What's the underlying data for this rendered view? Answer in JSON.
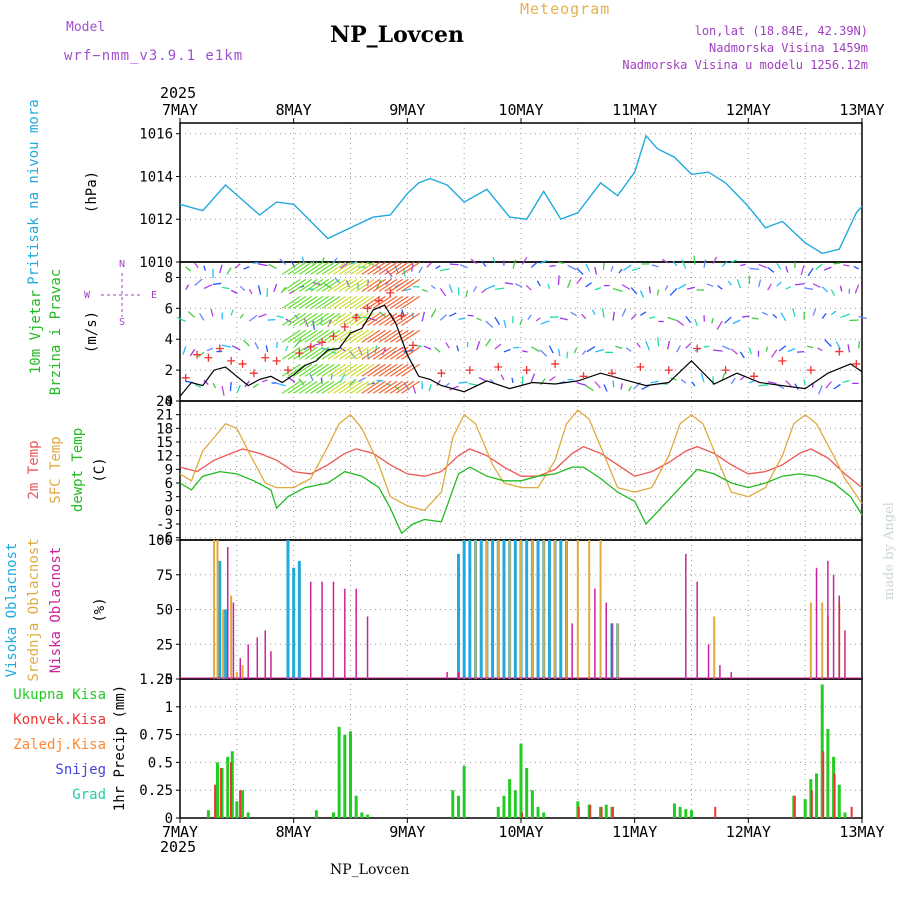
{
  "header": {
    "model_label": "Model",
    "model_value": "wrf−nmm_v3.9.1 e1km",
    "station": "NP_Lovcen",
    "meteogram_label": "Meteogram",
    "lonlat": "lon,lat (18.84E, 42.39N)",
    "elevation": "Nadmorska Visina 1459m",
    "elevation_model": "Nadmorska Visina u modelu 1256.12m",
    "year": "2025",
    "credit": "made by Angel",
    "footer_station": "NP_Lovcen"
  },
  "colors": {
    "pressure": "#22aadd",
    "wind_label": "#22bb22",
    "wind_speed_line": "#000000",
    "wind_gust_marker": "#ee3333",
    "temp_2m": "#ee5555",
    "temp_sfc": "#e0aa40",
    "dewpoint": "#22bb22",
    "cloud_high": "#22aadd",
    "cloud_mid": "#e0aa40",
    "cloud_low": "#cc2299",
    "precip_total": "#22cc22",
    "precip_conv": "#ee3333",
    "precip_frz": "#ff8833",
    "precip_snow": "#4444dd",
    "precip_grad": "#22ccaa",
    "grid": "#999999"
  },
  "chart_data": [
    {
      "type": "line",
      "id": "pressure",
      "ylabel": "Pritisak na nivou mora",
      "unit": "(hPa)",
      "x_dates": [
        "7MAY",
        "8MAY",
        "9MAY",
        "10MAY",
        "11MAY",
        "12MAY",
        "13MAY"
      ],
      "ylim": [
        1010,
        1016.5
      ],
      "yticks": [
        1010,
        1012,
        1014,
        1016
      ],
      "grid": true,
      "series": [
        {
          "x_days": [
            0,
            0.2,
            0.4,
            0.55,
            0.7,
            0.85,
            1.0,
            1.15,
            1.3,
            1.5,
            1.7,
            1.85,
            2.0,
            2.1,
            2.2,
            2.35,
            2.5,
            2.7,
            2.9,
            3.05,
            3.2,
            3.35,
            3.5,
            3.7,
            3.85,
            4.0,
            4.1,
            4.2,
            4.35,
            4.5,
            4.65,
            4.8,
            5.0,
            5.15,
            5.3,
            5.5,
            5.65,
            5.8,
            5.95,
            6.0
          ],
          "values": [
            1012.7,
            1012.4,
            1013.6,
            1012.9,
            1012.2,
            1012.8,
            1012.7,
            1011.9,
            1011.1,
            1011.6,
            1012.1,
            1012.2,
            1013.2,
            1013.7,
            1013.9,
            1013.6,
            1012.8,
            1013.4,
            1012.1,
            1012.0,
            1013.3,
            1012.0,
            1012.3,
            1013.7,
            1013.1,
            1014.2,
            1015.9,
            1015.3,
            1014.9,
            1014.1,
            1014.2,
            1013.7,
            1012.6,
            1011.6,
            1011.9,
            1010.9,
            1010.4,
            1010.6,
            1012.3,
            1012.6
          ]
        }
      ]
    },
    {
      "type": "line",
      "id": "wind",
      "ylabel_lines": [
        "10m Vjetar",
        "Brzina i Pravac"
      ],
      "unit": "(m/s)",
      "compass": {
        "n": "N",
        "s": "S",
        "w": "W",
        "e": "E"
      },
      "ylim": [
        0,
        9
      ],
      "yticks": [
        0,
        2,
        4,
        6,
        8
      ],
      "grid": true,
      "series": [
        {
          "name": "speed",
          "x_days": [
            0,
            0.1,
            0.2,
            0.3,
            0.4,
            0.5,
            0.6,
            0.7,
            0.8,
            0.9,
            1.0,
            1.1,
            1.2,
            1.3,
            1.4,
            1.5,
            1.6,
            1.7,
            1.8,
            1.9,
            2.0,
            2.1,
            2.2,
            2.3,
            2.5,
            2.7,
            2.9,
            3.1,
            3.3,
            3.5,
            3.7,
            3.9,
            4.1,
            4.3,
            4.5,
            4.7,
            4.9,
            5.1,
            5.3,
            5.5,
            5.7,
            5.9,
            6.0
          ],
          "values": [
            0.3,
            1.2,
            1.0,
            2.0,
            2.2,
            1.6,
            1.0,
            1.4,
            1.6,
            1.2,
            1.7,
            2.3,
            2.6,
            3.3,
            3.4,
            4.4,
            4.7,
            5.9,
            6.2,
            5.0,
            3.0,
            1.6,
            1.4,
            1.0,
            0.6,
            1.3,
            0.8,
            1.2,
            1.1,
            1.3,
            1.8,
            1.4,
            1.0,
            1.2,
            2.6,
            1.1,
            1.8,
            1.2,
            1.0,
            0.8,
            1.8,
            2.4,
            1.9
          ]
        },
        {
          "name": "gust",
          "x_days": [
            0.05,
            0.15,
            0.25,
            0.35,
            0.45,
            0.55,
            0.65,
            0.75,
            0.85,
            0.95,
            1.05,
            1.15,
            1.25,
            1.35,
            1.45,
            1.55,
            1.65,
            1.75,
            1.85,
            1.95,
            2.05,
            2.3,
            2.55,
            2.8,
            3.05,
            3.3,
            3.55,
            3.8,
            4.05,
            4.3,
            4.55,
            4.8,
            5.05,
            5.3,
            5.55,
            5.8,
            5.95
          ],
          "values": [
            1.5,
            3.0,
            2.8,
            3.4,
            2.6,
            2.4,
            1.8,
            2.8,
            2.6,
            2.0,
            3.1,
            3.5,
            3.8,
            4.2,
            4.8,
            5.4,
            6.0,
            6.5,
            7.0,
            5.5,
            3.6,
            1.8,
            2.0,
            2.2,
            2.0,
            2.4,
            1.6,
            1.8,
            2.2,
            2.0,
            3.4,
            2.0,
            1.6,
            2.6,
            2.0,
            3.2,
            2.4
          ]
        }
      ]
    },
    {
      "type": "line",
      "id": "temperature",
      "ylabel_lines": [
        "2m Temp",
        "SFC Temp",
        "dewpt Temp"
      ],
      "unit": "(C)",
      "ylim": [
        -6.5,
        24
      ],
      "yticks": [
        -6,
        -3,
        0,
        3,
        6,
        9,
        12,
        15,
        18,
        21,
        24
      ],
      "grid": true,
      "series": [
        {
          "name": "2m Temp",
          "x_days": [
            0,
            0.15,
            0.3,
            0.45,
            0.55,
            0.7,
            0.85,
            1.0,
            1.15,
            1.3,
            1.45,
            1.55,
            1.7,
            1.85,
            2.0,
            2.15,
            2.3,
            2.45,
            2.55,
            2.7,
            2.85,
            3.0,
            3.15,
            3.3,
            3.45,
            3.55,
            3.7,
            3.85,
            4.0,
            4.15,
            4.3,
            4.45,
            4.55,
            4.7,
            4.85,
            5.0,
            5.15,
            5.3,
            5.45,
            5.55,
            5.7,
            5.85,
            6.0
          ],
          "values": [
            9.5,
            8.5,
            11,
            12.5,
            13.5,
            12.5,
            11,
            8.5,
            8,
            10,
            12.5,
            13.5,
            12.5,
            10,
            8,
            7.5,
            8.5,
            12,
            13.5,
            12,
            9.5,
            7.5,
            7.5,
            9,
            12.5,
            14,
            12.5,
            10,
            7.5,
            8.5,
            10.5,
            13,
            14,
            12.5,
            10,
            8,
            8.5,
            10,
            12.5,
            13.5,
            11.5,
            8,
            5
          ]
        },
        {
          "name": "SFC Temp",
          "x_days": [
            0,
            0.1,
            0.2,
            0.3,
            0.4,
            0.5,
            0.6,
            0.75,
            0.85,
            1.0,
            1.15,
            1.3,
            1.4,
            1.5,
            1.6,
            1.75,
            1.85,
            2.0,
            2.15,
            2.3,
            2.4,
            2.5,
            2.6,
            2.75,
            2.85,
            3.0,
            3.15,
            3.3,
            3.4,
            3.5,
            3.6,
            3.75,
            3.85,
            4.0,
            4.15,
            4.3,
            4.4,
            4.5,
            4.6,
            4.75,
            4.85,
            5.0,
            5.15,
            5.3,
            5.4,
            5.5,
            5.6,
            5.75,
            5.85,
            6.0
          ],
          "values": [
            8,
            6.5,
            13,
            16,
            19,
            18,
            13,
            6,
            5,
            5,
            7,
            14,
            19,
            21,
            18,
            10,
            3,
            1,
            0,
            4,
            16,
            21,
            19,
            10,
            6,
            5,
            5,
            11,
            19,
            22,
            20,
            11,
            5,
            4,
            5,
            12,
            19,
            21,
            19,
            10,
            4,
            3,
            5,
            12,
            19,
            21,
            19,
            12,
            7,
            1.5
          ]
        },
        {
          "name": "dewpt Temp",
          "x_days": [
            0,
            0.1,
            0.2,
            0.35,
            0.5,
            0.65,
            0.8,
            0.85,
            0.95,
            1.1,
            1.3,
            1.45,
            1.6,
            1.75,
            1.85,
            1.95,
            2.05,
            2.15,
            2.3,
            2.45,
            2.55,
            2.7,
            2.85,
            3.0,
            3.15,
            3.3,
            3.45,
            3.55,
            3.7,
            3.85,
            4.0,
            4.1,
            4.25,
            4.4,
            4.55,
            4.7,
            4.85,
            5.0,
            5.15,
            5.3,
            5.45,
            5.6,
            5.75,
            5.9,
            6.0
          ],
          "values": [
            6,
            4.5,
            7.5,
            8.5,
            8,
            6.5,
            4.5,
            0.5,
            3,
            5,
            6,
            8.5,
            7.5,
            5,
            0.5,
            -5,
            -3,
            -2,
            -2.5,
            8,
            9.5,
            7.5,
            6.5,
            6.5,
            7.5,
            8,
            9.5,
            9.5,
            7,
            4,
            2,
            -3,
            1,
            5,
            9,
            8,
            6,
            5,
            6,
            7.5,
            8,
            7.5,
            6,
            3,
            -1
          ]
        }
      ]
    },
    {
      "type": "bar",
      "id": "clouds",
      "ylabel_lines": [
        "Visoka Oblacnost",
        "Srednja Oblacnost",
        "Niska Oblacnost"
      ],
      "unit": "(%)",
      "ylim": [
        0,
        100
      ],
      "yticks": [
        0,
        25,
        50,
        75,
        100
      ],
      "grid": true,
      "series": [
        {
          "name": "Visoka Oblacnost",
          "x_days": [
            0.35,
            0.4,
            0.95,
            1.0,
            1.05,
            2.45,
            2.5,
            2.55,
            2.6,
            2.65,
            2.7,
            2.75,
            2.8,
            2.85,
            2.9,
            2.95,
            3.0,
            3.05,
            3.1,
            3.15,
            3.2,
            3.25,
            3.3,
            3.35,
            3.4,
            3.8,
            3.85
          ],
          "values": [
            85,
            50,
            100,
            80,
            85,
            90,
            100,
            100,
            100,
            100,
            100,
            100,
            100,
            100,
            100,
            100,
            100,
            100,
            100,
            100,
            100,
            100,
            100,
            100,
            100,
            40,
            40
          ]
        },
        {
          "name": "Srednja Oblacnost",
          "x_days": [
            0.3,
            0.33,
            0.38,
            0.45,
            0.5,
            0.55,
            2.6,
            2.7,
            2.8,
            2.9,
            3.0,
            3.1,
            3.2,
            3.3,
            3.4,
            3.5,
            3.6,
            3.7,
            3.85,
            4.7,
            5.55,
            5.65,
            5.7,
            5.8
          ],
          "values": [
            100,
            100,
            50,
            60,
            5,
            10,
            100,
            100,
            100,
            100,
            100,
            100,
            100,
            100,
            100,
            100,
            100,
            100,
            40,
            45,
            55,
            55,
            45,
            55
          ]
        },
        {
          "name": "Niska Oblacnost",
          "x_days": [
            0.42,
            0.47,
            0.53,
            0.6,
            0.68,
            0.75,
            0.8,
            1.15,
            1.25,
            1.35,
            1.45,
            1.55,
            1.65,
            2.35,
            2.45,
            3.45,
            3.65,
            3.75,
            3.8,
            4.45,
            4.55,
            4.65,
            4.75,
            4.85,
            5.6,
            5.7,
            5.75,
            5.8,
            5.85
          ],
          "values": [
            95,
            55,
            15,
            25,
            30,
            35,
            20,
            70,
            70,
            70,
            65,
            65,
            45,
            5,
            5,
            40,
            65,
            55,
            40,
            90,
            70,
            25,
            10,
            5,
            80,
            85,
            75,
            60,
            35
          ]
        }
      ]
    },
    {
      "type": "bar",
      "id": "precipitation",
      "legend": [
        "Ukupna Kisa",
        "Konvek.Kisa",
        "Zaledj.Kisa",
        "Snijeg",
        "Grad"
      ],
      "unit": "1hr Precip (mm)",
      "x_dates": [
        "7MAY",
        "8MAY",
        "9MAY",
        "10MAY",
        "11MAY",
        "12MAY",
        "13MAY"
      ],
      "ylim": [
        0,
        1.25
      ],
      "yticks": [
        0,
        0.25,
        0.5,
        0.75,
        1,
        1.25
      ],
      "grid": true,
      "series": [
        {
          "name": "Ukupna Kisa",
          "x_days": [
            0.25,
            0.33,
            0.37,
            0.42,
            0.46,
            0.5,
            0.55,
            0.6,
            1.2,
            1.35,
            1.4,
            1.45,
            1.5,
            1.55,
            1.6,
            1.65,
            2.4,
            2.45,
            2.5,
            2.8,
            2.85,
            2.9,
            2.95,
            3.0,
            3.05,
            3.1,
            3.15,
            3.2,
            3.5,
            3.6,
            3.7,
            3.75,
            3.8,
            4.35,
            4.4,
            4.45,
            4.5,
            5.4,
            5.5,
            5.55,
            5.6,
            5.65,
            5.7,
            5.75,
            5.8,
            5.85
          ],
          "values": [
            0.07,
            0.5,
            0.45,
            0.55,
            0.6,
            0.15,
            0.25,
            0.05,
            0.07,
            0.05,
            0.82,
            0.75,
            0.78,
            0.2,
            0.05,
            0.03,
            0.25,
            0.2,
            0.47,
            0.1,
            0.2,
            0.35,
            0.25,
            0.67,
            0.45,
            0.25,
            0.1,
            0.05,
            0.15,
            0.12,
            0.1,
            0.12,
            0.1,
            0.13,
            0.1,
            0.08,
            0.07,
            0.2,
            0.17,
            0.35,
            0.4,
            1.2,
            0.8,
            0.55,
            0.3,
            0.05
          ]
        },
        {
          "name": "Konvek.Kisa",
          "x_days": [
            0.3,
            0.35,
            0.44,
            0.52,
            3.0,
            3.5,
            3.6,
            3.7,
            3.8,
            4.7,
            5.4,
            5.55,
            5.65,
            5.75,
            5.9
          ],
          "values": [
            0.3,
            0.45,
            0.5,
            0.25,
            0.05,
            0.1,
            0.12,
            0.1,
            0.1,
            0.1,
            0.2,
            0.25,
            0.6,
            0.4,
            0.1
          ]
        }
      ]
    }
  ]
}
